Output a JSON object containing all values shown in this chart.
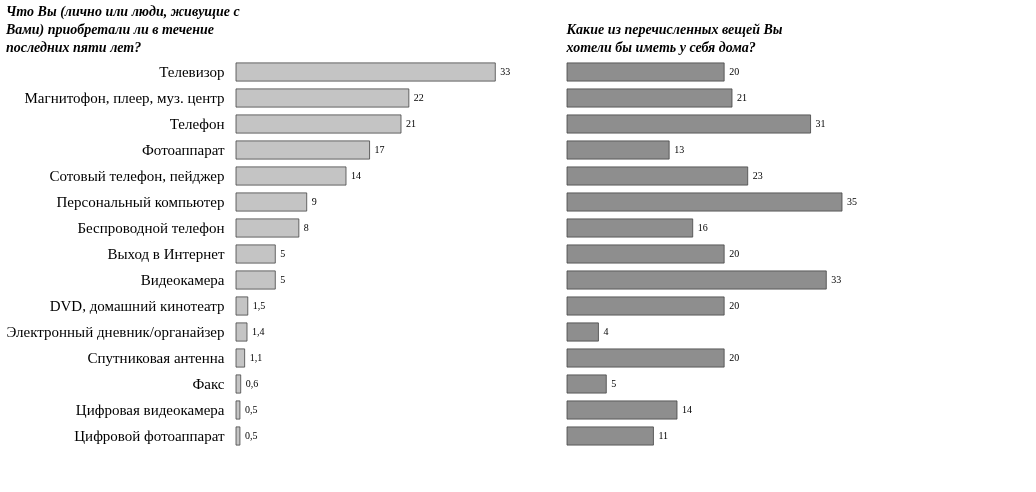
{
  "chart_data": [
    {
      "type": "bar",
      "orientation": "horizontal",
      "title": "Что Вы (лично или люди, живущие с Вами) приобретали ли в течение последних пяти лет?",
      "categories": [
        "Телевизор",
        "Магнитофон, плеер, муз. центр",
        "Телефон",
        "Фотоаппарат",
        "Сотовый телефон, пейджер",
        "Персональный компьютер",
        "Беспроводной телефон",
        "Выход в Интернет",
        "Видеокамера",
        "DVD, домашний кинотеатр",
        "Электронный дневник/органайзер",
        "Спутниковая антенна",
        "Факс",
        "Цифровая видеокамера",
        "Цифровой фотоаппарат"
      ],
      "values": [
        33,
        22,
        21,
        17,
        14,
        9,
        8,
        5,
        5,
        1.5,
        1.4,
        1.1,
        0.6,
        0.5,
        0.5
      ],
      "value_labels": [
        "33",
        "22",
        "21",
        "17",
        "14",
        "9",
        "8",
        "5",
        "5",
        "1,5",
        "1,4",
        "1,1",
        "0,6",
        "0,5",
        "0,5"
      ],
      "color": "#c4c4c4",
      "tick_labels": "y",
      "grid": false
    },
    {
      "type": "bar",
      "orientation": "horizontal",
      "title": "Какие из перечисленных вещей Вы хотели бы иметь у себя дома?",
      "categories": [
        null,
        null,
        null,
        null,
        null,
        null,
        null,
        null,
        null,
        null,
        null,
        null,
        null,
        null,
        null
      ],
      "values": [
        20,
        21,
        31,
        13,
        23,
        35,
        16,
        20,
        33,
        20,
        4,
        20,
        5,
        14,
        11
      ],
      "data_labels": true,
      "color": "#8e8e8e",
      "tick_labels": false,
      "grid": false
    }
  ]
}
